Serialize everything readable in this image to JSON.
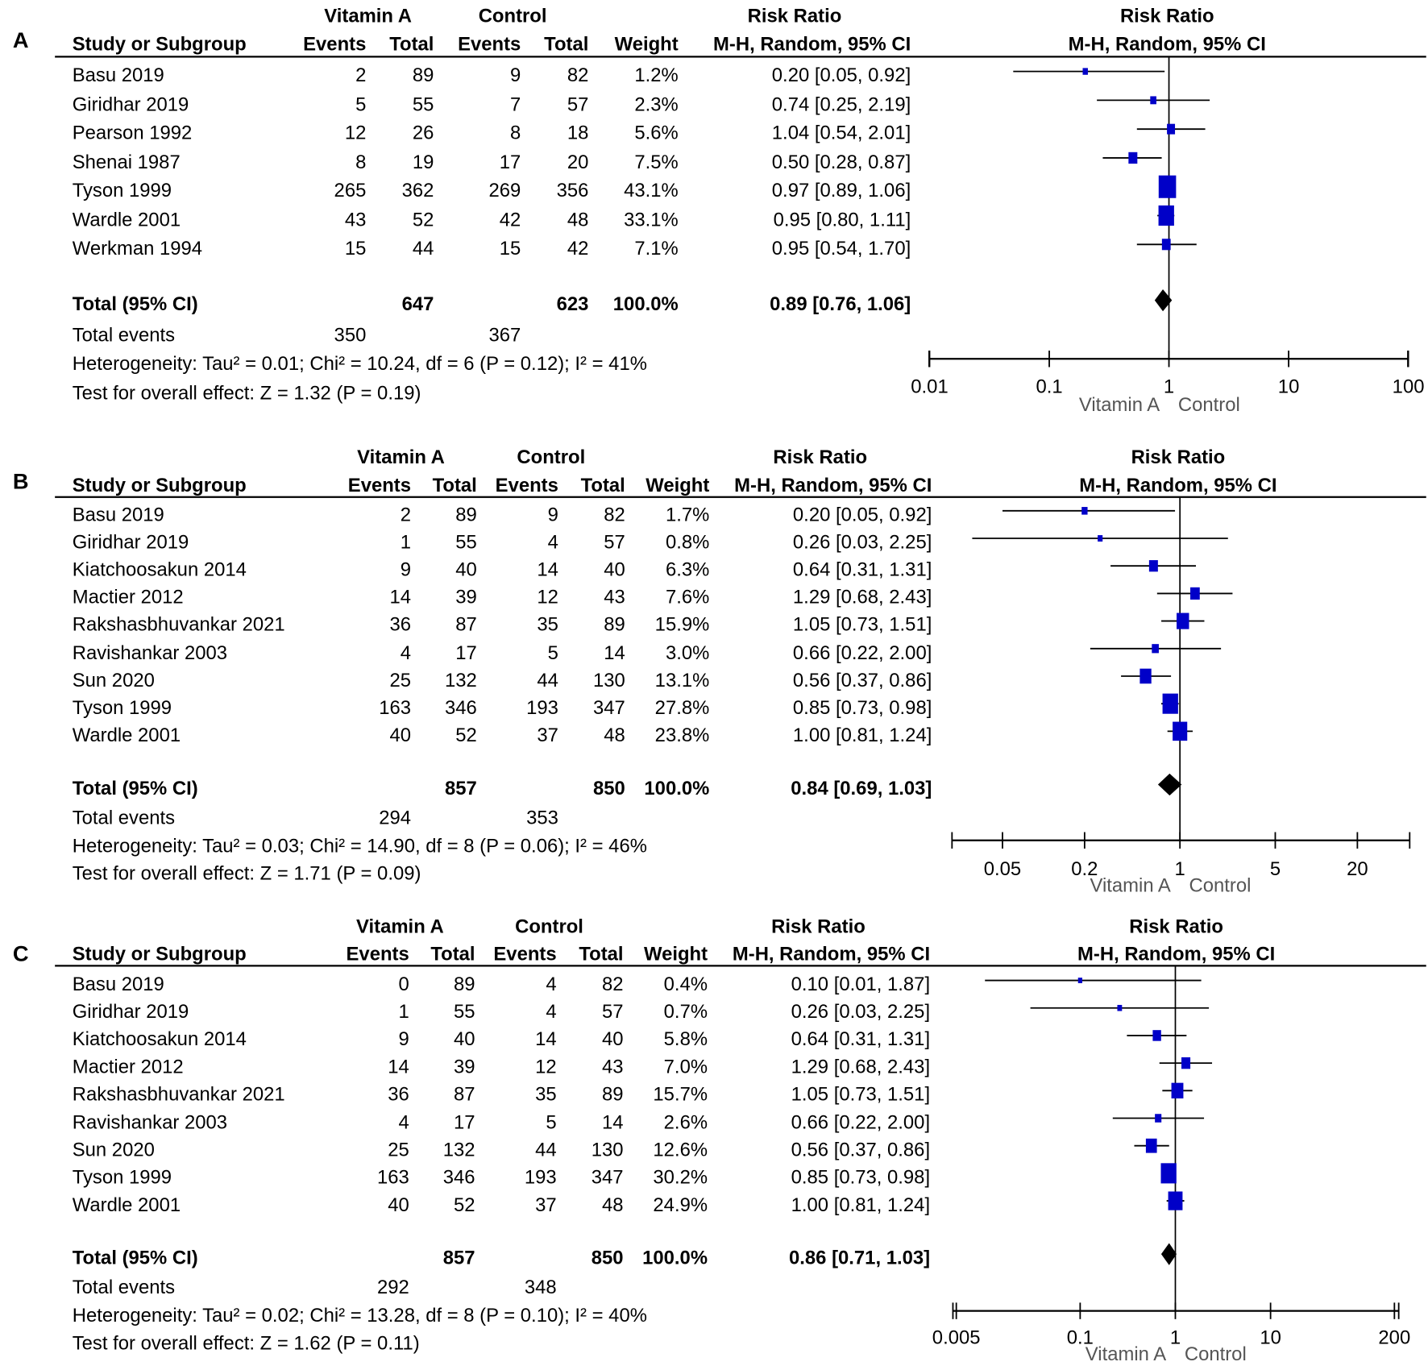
{
  "chart_data": [
    {
      "type": "forest",
      "panel_label": "A",
      "headers": {
        "group1": "Vitamin A",
        "group2": "Control",
        "effect": "Risk Ratio",
        "study": "Study or Subgroup",
        "events": "Events",
        "total": "Total",
        "weight": "Weight",
        "method": "M-H, Random, 95% CI",
        "plot_title": "Risk Ratio",
        "plot_method": "M-H, Random, 95% CI"
      },
      "studies": [
        {
          "name": "Basu 2019",
          "e1": "2",
          "n1": "89",
          "e2": "9",
          "n2": "82",
          "weight": "1.2%",
          "ci_text": "0.20 [0.05, 0.92]",
          "rr": 0.2,
          "lo": 0.05,
          "hi": 0.92,
          "w": 1.2
        },
        {
          "name": "Giridhar 2019",
          "e1": "5",
          "n1": "55",
          "e2": "7",
          "n2": "57",
          "weight": "2.3%",
          "ci_text": "0.74 [0.25, 2.19]",
          "rr": 0.74,
          "lo": 0.25,
          "hi": 2.19,
          "w": 2.3
        },
        {
          "name": "Pearson 1992",
          "e1": "12",
          "n1": "26",
          "e2": "8",
          "n2": "18",
          "weight": "5.6%",
          "ci_text": "1.04 [0.54, 2.01]",
          "rr": 1.04,
          "lo": 0.54,
          "hi": 2.01,
          "w": 5.6
        },
        {
          "name": "Shenai 1987",
          "e1": "8",
          "n1": "19",
          "e2": "17",
          "n2": "20",
          "weight": "7.5%",
          "ci_text": "0.50 [0.28, 0.87]",
          "rr": 0.5,
          "lo": 0.28,
          "hi": 0.87,
          "w": 7.5
        },
        {
          "name": "Tyson 1999",
          "e1": "265",
          "n1": "362",
          "e2": "269",
          "n2": "356",
          "weight": "43.1%",
          "ci_text": "0.97 [0.89, 1.06]",
          "rr": 0.97,
          "lo": 0.89,
          "hi": 1.06,
          "w": 43.1
        },
        {
          "name": "Wardle 2001",
          "e1": "43",
          "n1": "52",
          "e2": "42",
          "n2": "48",
          "weight": "33.1%",
          "ci_text": "0.95 [0.80, 1.11]",
          "rr": 0.95,
          "lo": 0.8,
          "hi": 1.11,
          "w": 33.1
        },
        {
          "name": "Werkman 1994",
          "e1": "15",
          "n1": "44",
          "e2": "15",
          "n2": "42",
          "weight": "7.1%",
          "ci_text": "0.95 [0.54, 1.70]",
          "rr": 0.95,
          "lo": 0.54,
          "hi": 1.7,
          "w": 7.1
        }
      ],
      "total": {
        "label": "Total (95% CI)",
        "n1": "647",
        "n2": "623",
        "weight": "100.0%",
        "ci_text": "0.89 [0.76, 1.06]",
        "rr": 0.89,
        "lo": 0.76,
        "hi": 1.06
      },
      "total_events": {
        "label": "Total events",
        "e1": "350",
        "e2": "367"
      },
      "heterogeneity": "Heterogeneity: Tau² = 0.01; Chi² = 10.24, df = 6 (P = 0.12); I² = 41%",
      "overall_effect": "Test for overall effect: Z = 1.32 (P = 0.19)",
      "x_scale": "log",
      "x_ticks": [
        0.01,
        0.1,
        1,
        10,
        100
      ],
      "x_tick_labels": [
        "0.01",
        "0.1",
        "1",
        "10",
        "100"
      ],
      "xlim": [
        0.01,
        100
      ],
      "favours_left": "Vitamin A",
      "favours_right": "Control"
    },
    {
      "type": "forest",
      "panel_label": "B",
      "headers": {
        "group1": "Vitamin A",
        "group2": "Control",
        "effect": "Risk Ratio",
        "study": "Study or Subgroup",
        "events": "Events",
        "total": "Total",
        "weight": "Weight",
        "method": "M-H, Random, 95% CI",
        "plot_title": "Risk Ratio",
        "plot_method": "M-H, Random, 95% CI"
      },
      "studies": [
        {
          "name": "Basu 2019",
          "e1": "2",
          "n1": "89",
          "e2": "9",
          "n2": "82",
          "weight": "1.7%",
          "ci_text": "0.20 [0.05, 0.92]",
          "rr": 0.2,
          "lo": 0.05,
          "hi": 0.92,
          "w": 1.7
        },
        {
          "name": "Giridhar 2019",
          "e1": "1",
          "n1": "55",
          "e2": "4",
          "n2": "57",
          "weight": "0.8%",
          "ci_text": "0.26 [0.03, 2.25]",
          "rr": 0.26,
          "lo": 0.03,
          "hi": 2.25,
          "w": 0.8
        },
        {
          "name": "Kiatchoosakun 2014",
          "e1": "9",
          "n1": "40",
          "e2": "14",
          "n2": "40",
          "weight": "6.3%",
          "ci_text": "0.64 [0.31, 1.31]",
          "rr": 0.64,
          "lo": 0.31,
          "hi": 1.31,
          "w": 6.3
        },
        {
          "name": "Mactier  2012",
          "e1": "14",
          "n1": "39",
          "e2": "12",
          "n2": "43",
          "weight": "7.6%",
          "ci_text": "1.29 [0.68, 2.43]",
          "rr": 1.29,
          "lo": 0.68,
          "hi": 2.43,
          "w": 7.6
        },
        {
          "name": "Rakshasbhuvankar 2021",
          "e1": "36",
          "n1": "87",
          "e2": "35",
          "n2": "89",
          "weight": "15.9%",
          "ci_text": "1.05 [0.73, 1.51]",
          "rr": 1.05,
          "lo": 0.73,
          "hi": 1.51,
          "w": 15.9
        },
        {
          "name": "Ravishankar 2003",
          "e1": "4",
          "n1": "17",
          "e2": "5",
          "n2": "14",
          "weight": "3.0%",
          "ci_text": "0.66 [0.22, 2.00]",
          "rr": 0.66,
          "lo": 0.22,
          "hi": 2.0,
          "w": 3.0
        },
        {
          "name": "Sun 2020",
          "e1": "25",
          "n1": "132",
          "e2": "44",
          "n2": "130",
          "weight": "13.1%",
          "ci_text": "0.56 [0.37, 0.86]",
          "rr": 0.56,
          "lo": 0.37,
          "hi": 0.86,
          "w": 13.1
        },
        {
          "name": "Tyson 1999",
          "e1": "163",
          "n1": "346",
          "e2": "193",
          "n2": "347",
          "weight": "27.8%",
          "ci_text": "0.85 [0.73, 0.98]",
          "rr": 0.85,
          "lo": 0.73,
          "hi": 0.98,
          "w": 27.8
        },
        {
          "name": "Wardle 2001",
          "e1": "40",
          "n1": "52",
          "e2": "37",
          "n2": "48",
          "weight": "23.8%",
          "ci_text": "1.00 [0.81, 1.24]",
          "rr": 1.0,
          "lo": 0.81,
          "hi": 1.24,
          "w": 23.8
        }
      ],
      "total": {
        "label": "Total (95% CI)",
        "n1": "857",
        "n2": "850",
        "weight": "100.0%",
        "ci_text": "0.84 [0.69, 1.03]",
        "rr": 0.84,
        "lo": 0.69,
        "hi": 1.03
      },
      "total_events": {
        "label": "Total events",
        "e1": "294",
        "e2": "353"
      },
      "heterogeneity": "Heterogeneity: Tau² = 0.03; Chi² = 14.90, df = 8 (P = 0.06); I² = 46%",
      "overall_effect": "Test for overall effect: Z = 1.71 (P = 0.09)",
      "x_scale": "log",
      "x_ticks": [
        0.05,
        0.2,
        1,
        5,
        20
      ],
      "x_tick_labels": [
        "0.05",
        "0.2",
        "1",
        "5",
        "20"
      ],
      "xlim": [
        0.02,
        45
      ],
      "favours_left": "Vitamin A",
      "favours_right": "Control"
    },
    {
      "type": "forest",
      "panel_label": "C",
      "headers": {
        "group1": "Vitamin A",
        "group2": "Control",
        "effect": "Risk Ratio",
        "study": "Study or Subgroup",
        "events": "Events",
        "total": "Total",
        "weight": "Weight",
        "method": "M-H, Random, 95% CI",
        "plot_title": "Risk Ratio",
        "plot_method": "M-H, Random, 95% CI"
      },
      "studies": [
        {
          "name": "Basu 2019",
          "e1": "0",
          "n1": "89",
          "e2": "4",
          "n2": "82",
          "weight": "0.4%",
          "ci_text": "0.10 [0.01, 1.87]",
          "rr": 0.1,
          "lo": 0.01,
          "hi": 1.87,
          "w": 0.4
        },
        {
          "name": "Giridhar 2019",
          "e1": "1",
          "n1": "55",
          "e2": "4",
          "n2": "57",
          "weight": "0.7%",
          "ci_text": "0.26 [0.03, 2.25]",
          "rr": 0.26,
          "lo": 0.03,
          "hi": 2.25,
          "w": 0.7
        },
        {
          "name": "Kiatchoosakun 2014",
          "e1": "9",
          "n1": "40",
          "e2": "14",
          "n2": "40",
          "weight": "5.8%",
          "ci_text": "0.64 [0.31, 1.31]",
          "rr": 0.64,
          "lo": 0.31,
          "hi": 1.31,
          "w": 5.8
        },
        {
          "name": "Mactier  2012",
          "e1": "14",
          "n1": "39",
          "e2": "12",
          "n2": "43",
          "weight": "7.0%",
          "ci_text": "1.29 [0.68, 2.43]",
          "rr": 1.29,
          "lo": 0.68,
          "hi": 2.43,
          "w": 7.0
        },
        {
          "name": "Rakshasbhuvankar 2021",
          "e1": "36",
          "n1": "87",
          "e2": "35",
          "n2": "89",
          "weight": "15.7%",
          "ci_text": "1.05 [0.73, 1.51]",
          "rr": 1.05,
          "lo": 0.73,
          "hi": 1.51,
          "w": 15.7
        },
        {
          "name": "Ravishankar 2003",
          "e1": "4",
          "n1": "17",
          "e2": "5",
          "n2": "14",
          "weight": "2.6%",
          "ci_text": "0.66 [0.22, 2.00]",
          "rr": 0.66,
          "lo": 0.22,
          "hi": 2.0,
          "w": 2.6
        },
        {
          "name": "Sun 2020",
          "e1": "25",
          "n1": "132",
          "e2": "44",
          "n2": "130",
          "weight": "12.6%",
          "ci_text": "0.56 [0.37, 0.86]",
          "rr": 0.56,
          "lo": 0.37,
          "hi": 0.86,
          "w": 12.6
        },
        {
          "name": "Tyson 1999",
          "e1": "163",
          "n1": "346",
          "e2": "193",
          "n2": "347",
          "weight": "30.2%",
          "ci_text": "0.85 [0.73, 0.98]",
          "rr": 0.85,
          "lo": 0.73,
          "hi": 0.98,
          "w": 30.2
        },
        {
          "name": "Wardle 2001",
          "e1": "40",
          "n1": "52",
          "e2": "37",
          "n2": "48",
          "weight": "24.9%",
          "ci_text": "1.00 [0.81, 1.24]",
          "rr": 1.0,
          "lo": 0.81,
          "hi": 1.24,
          "w": 24.9
        }
      ],
      "total": {
        "label": "Total (95% CI)",
        "n1": "857",
        "n2": "850",
        "weight": "100.0%",
        "ci_text": "0.86 [0.71, 1.03]",
        "rr": 0.86,
        "lo": 0.71,
        "hi": 1.03
      },
      "total_events": {
        "label": "Total events",
        "e1": "292",
        "e2": "348"
      },
      "heterogeneity": "Heterogeneity: Tau² = 0.02; Chi² = 13.28, df = 8 (P = 0.10); I² = 40%",
      "overall_effect": "Test for overall effect: Z = 1.62 (P = 0.11)",
      "x_scale": "log",
      "x_ticks": [
        0.005,
        0.1,
        1,
        10,
        200
      ],
      "x_tick_labels": [
        "0.005",
        "0.1",
        "1",
        "10",
        "200"
      ],
      "xlim": [
        0.005,
        200
      ],
      "favours_left": "Vitamin A",
      "favours_right": "Control"
    }
  ],
  "colors": {
    "square": "#0000c8",
    "line": "#000000",
    "diamond": "#000000",
    "favours_text": "#555555"
  }
}
